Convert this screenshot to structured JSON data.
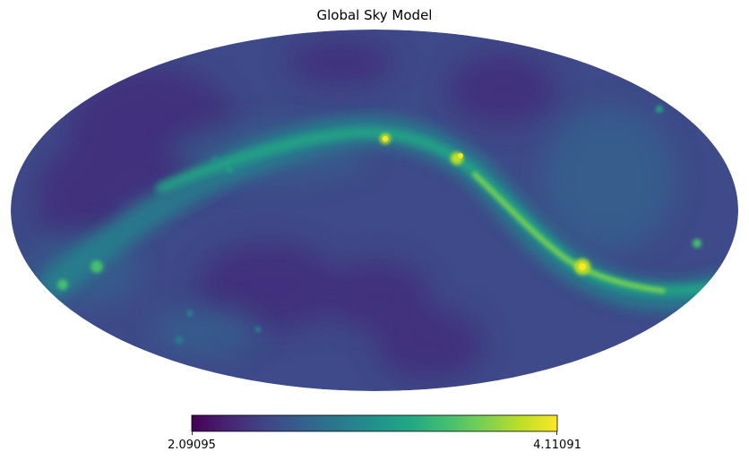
{
  "chart_data": {
    "type": "heatmap",
    "projection": "mollweide",
    "title": "Global Sky Model",
    "colormap": "viridis",
    "colormap_stops": [
      "#440154",
      "#482475",
      "#414487",
      "#355f8d",
      "#2a788e",
      "#21918c",
      "#22a884",
      "#44bf70",
      "#7ad151",
      "#bddf26",
      "#fde725"
    ],
    "colorbar": {
      "orientation": "horizontal",
      "min": 2.09095,
      "max": 4.11091,
      "min_label": "2.09095",
      "max_label": "4.11091"
    },
    "map_background_level": 0.18
  }
}
